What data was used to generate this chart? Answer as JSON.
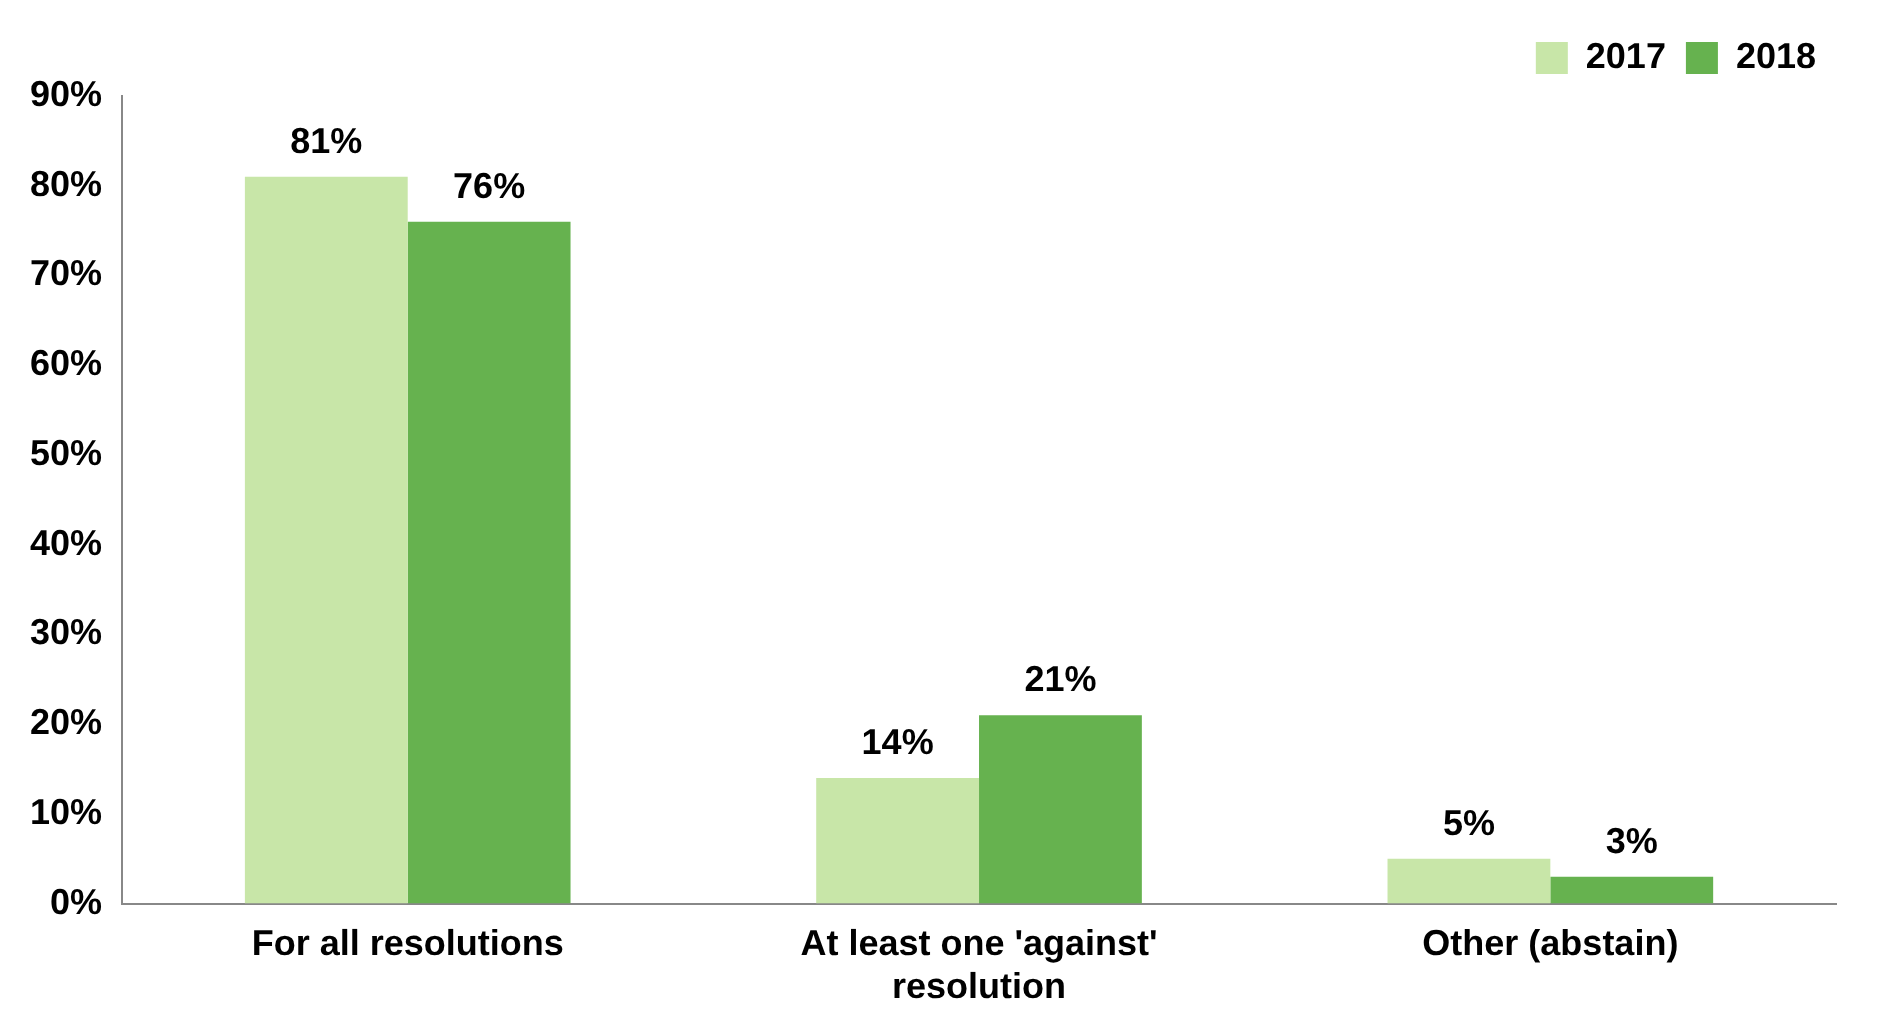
{
  "chart_data": {
    "type": "bar",
    "categories": [
      "For all resolutions",
      "At least one 'against' resolution",
      "Other (abstain)"
    ],
    "series": [
      {
        "name": "2017",
        "color": "#c8e6a8",
        "values": [
          81,
          14,
          5
        ],
        "value_labels": [
          "81%",
          "14%",
          "5%"
        ]
      },
      {
        "name": "2018",
        "color": "#66b24f",
        "values": [
          76,
          21,
          3
        ],
        "value_labels": [
          "76%",
          "21%",
          "3%"
        ]
      }
    ],
    "ylim": [
      0,
      90
    ],
    "yticks": [
      {
        "value": 0,
        "label": "0%"
      },
      {
        "value": 10,
        "label": "10%"
      },
      {
        "value": 20,
        "label": "20%"
      },
      {
        "value": 30,
        "label": "30%"
      },
      {
        "value": 40,
        "label": "40%"
      },
      {
        "value": 50,
        "label": "50%"
      },
      {
        "value": 60,
        "label": "60%"
      },
      {
        "value": 70,
        "label": "70%"
      },
      {
        "value": 80,
        "label": "80%"
      },
      {
        "value": 90,
        "label": "90%"
      }
    ],
    "grid": false,
    "legend": "top right"
  }
}
